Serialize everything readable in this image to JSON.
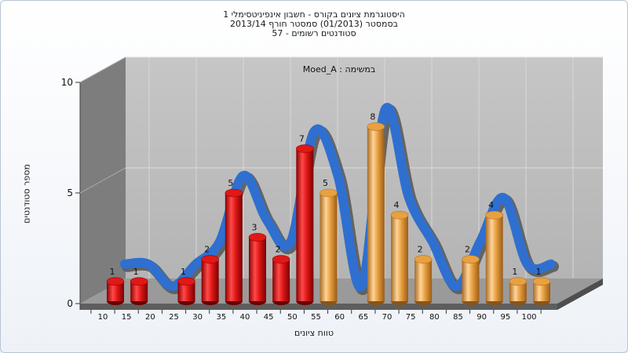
{
  "title_lines": [
    "היסטוגרמת ציונים בקורס - חשבון אינפיניטסימלי 1",
    "בסמסטר (01/2013) סמסטר חורף 2013/14",
    "סטודנטים רשומים - 57"
  ],
  "chart_data": {
    "type": "bar",
    "subtitle": "במשימה : Moed_A",
    "xlabel": "טווח ציונים",
    "ylabel": "מספר סטודנטים",
    "ylim": [
      0,
      10
    ],
    "yticks": [
      0,
      5,
      10
    ],
    "categories": [
      "10",
      "15",
      "20",
      "25",
      "30",
      "35",
      "40",
      "45",
      "50",
      "55",
      "60",
      "65",
      "70",
      "75",
      "80",
      "85",
      "90",
      "95",
      "100"
    ],
    "values": [
      1,
      1,
      0,
      1,
      2,
      5,
      3,
      2,
      7,
      5,
      0,
      8,
      4,
      2,
      0,
      2,
      4,
      1,
      1
    ],
    "bar_colors": [
      "#e01818",
      "#e01818",
      "#e01818",
      "#e01818",
      "#e01818",
      "#e01818",
      "#e01818",
      "#e01818",
      "#e01818",
      "#e8a040",
      "#e8a040",
      "#e8a040",
      "#e8a040",
      "#e8a040",
      "#e8a040",
      "#e8a040",
      "#e8a040",
      "#e8a040",
      "#e8a040"
    ],
    "trend_color": "#2f6fd0",
    "grid": true,
    "legend": "none"
  }
}
